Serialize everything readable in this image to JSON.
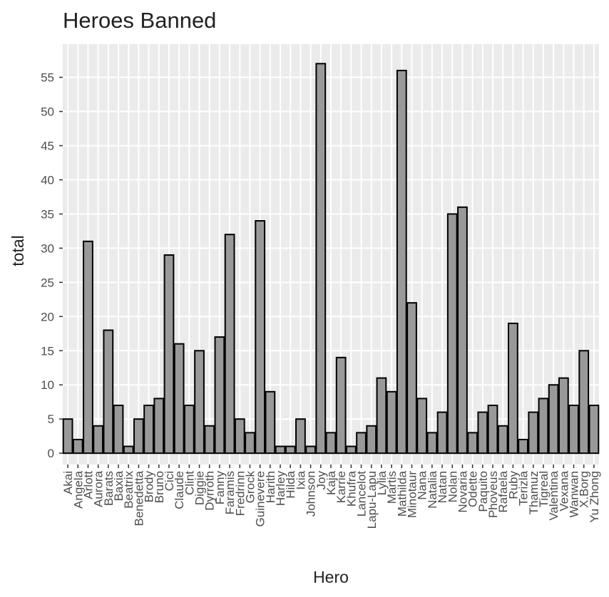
{
  "chart_data": {
    "type": "bar",
    "title": "Heroes Banned",
    "x_label": "Hero",
    "y_label": "total",
    "categories": [
      "Akai",
      "Angela",
      "Arlott",
      "Aurora",
      "Barats",
      "Baxia",
      "Beatrix",
      "Benedetta",
      "Brody",
      "Bruno",
      "Cici",
      "Claude",
      "Clint",
      "Diggie",
      "Dyrroth",
      "Fanny",
      "Faramis",
      "Fredrinn",
      "Grock",
      "Guinevere",
      "Harith",
      "Harley",
      "Hilda",
      "Ixia",
      "Johnson",
      "Joy",
      "Kaja",
      "Karrie",
      "Khufra",
      "Lancelot",
      "Lapu-Lapu",
      "Lylia",
      "Martis",
      "Mathilda",
      "Minotaur",
      "Nana",
      "Natalia",
      "Natan",
      "Nolan",
      "Novaria",
      "Odette",
      "Paquito",
      "Phoveus",
      "Rafaela",
      "Ruby",
      "Terizla",
      "Thamuz",
      "Tigreal",
      "Valentina",
      "Vexana",
      "Wanwan",
      "X.Borg",
      "Yu Zhong"
    ],
    "values": [
      5,
      2,
      31,
      4,
      18,
      7,
      1,
      5,
      7,
      8,
      29,
      16,
      7,
      15,
      4,
      17,
      32,
      5,
      3,
      34,
      9,
      1,
      1,
      5,
      1,
      57,
      3,
      14,
      1,
      3,
      4,
      11,
      9,
      56,
      22,
      8,
      3,
      6,
      35,
      36,
      3,
      6,
      7,
      4,
      19,
      2,
      6,
      8,
      10,
      11,
      7,
      15,
      7
    ],
    "color": "#999999",
    "ylim": [
      -1.65,
      59.85
    ],
    "yticks": [
      0,
      5,
      10,
      15,
      20,
      25,
      30,
      35,
      40,
      45,
      50,
      55
    ],
    "grid": true
  }
}
